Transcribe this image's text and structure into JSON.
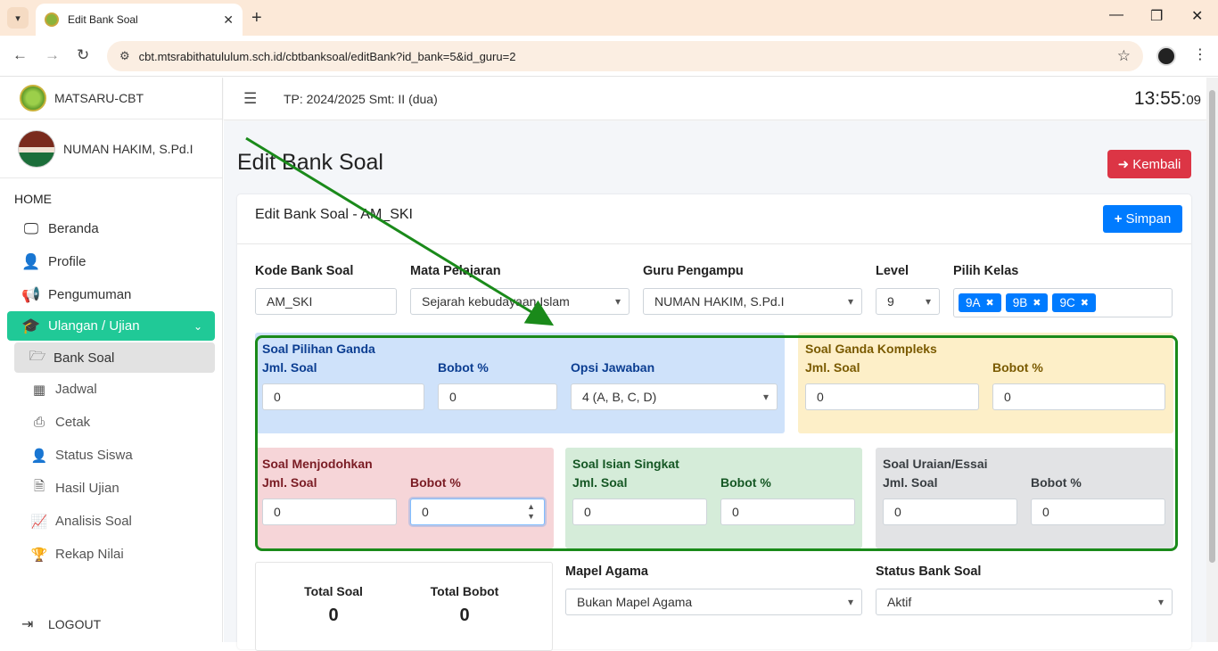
{
  "browser": {
    "tab_title": "Edit Bank Soal",
    "url": "cbt.mtsrabithatulului m.sch.id/cbtbanksoal/editBank?id_bank=5&id_guru=2"
  },
  "sidebar": {
    "brand": "MATSARU-CBT",
    "user_name": "NUMAN HAKIM, S.Pd.I",
    "header": "HOME",
    "items": [
      {
        "label": "Beranda",
        "icon": "monitor-icon"
      },
      {
        "label": "Profile",
        "icon": "user-icon"
      },
      {
        "label": "Pengumuman",
        "icon": "megaphone-icon"
      },
      {
        "label": "Ulangan / Ujian",
        "icon": "graduation-icon"
      }
    ],
    "sub_items": [
      {
        "label": "Bank Soal",
        "icon": "folder-open-icon"
      },
      {
        "label": "Jadwal",
        "icon": "calendar-icon"
      },
      {
        "label": "Cetak",
        "icon": "print-icon"
      },
      {
        "label": "Status Siswa",
        "icon": "user-clock-icon"
      },
      {
        "label": "Hasil Ujian",
        "icon": "file-icon"
      },
      {
        "label": "Analisis Soal",
        "icon": "chart-line-icon"
      },
      {
        "label": "Rekap Nilai",
        "icon": "trophy-icon"
      }
    ],
    "logout": "LOGOUT"
  },
  "topbar": {
    "tp": "TP: 2024/2025 Smt: II (dua)",
    "clock_hm": "13:55:",
    "clock_s": "09"
  },
  "page": {
    "title": "Edit Bank Soal",
    "kembali": "Kembali",
    "card_title": "Edit Bank Soal - AM_SKI",
    "simpan": "Simpan"
  },
  "form": {
    "kode_label": "Kode Bank Soal",
    "kode_value": "AM_SKI",
    "mapel_label": "Mata Pelajaran",
    "mapel_value": "Sejarah kebudayaan Islam",
    "guru_label": "Guru Pengampu",
    "guru_value": "NUMAN HAKIM, S.Pd.I",
    "level_label": "Level",
    "level_value": "9",
    "kelas_label": "Pilih Kelas",
    "kelas": [
      "9A",
      "9B",
      "9C"
    ]
  },
  "panels": {
    "pg": {
      "title": "Soal Pilihan Ganda",
      "jml_label": "Jml. Soal",
      "jml": "0",
      "bobot_label": "Bobot %",
      "bobot": "0",
      "opsi_label": "Opsi Jawaban",
      "opsi": "4 (A, B, C, D)"
    },
    "kompleks": {
      "title": "Soal Ganda Kompleks",
      "jml_label": "Jml. Soal",
      "jml": "0",
      "bobot_label": "Bobot %",
      "bobot": "0"
    },
    "jodoh": {
      "title": "Soal Menjodohkan",
      "jml_label": "Jml. Soal",
      "jml": "0",
      "bobot_label": "Bobot %",
      "bobot": "0"
    },
    "isian": {
      "title": "Soal Isian Singkat",
      "jml_label": "Jml. Soal",
      "jml": "0",
      "bobot_label": "Bobot %",
      "bobot": "0"
    },
    "essai": {
      "title": "Soal Uraian/Essai",
      "jml_label": "Jml. Soal",
      "jml": "0",
      "bobot_label": "Bobot %",
      "bobot": "0"
    }
  },
  "totals": {
    "soal_label": "Total Soal",
    "soal": "0",
    "bobot_label": "Total Bobot",
    "bobot": "0"
  },
  "agama": {
    "label": "Mapel Agama",
    "value": "Bukan Mapel Agama"
  },
  "status": {
    "label": "Status Bank Soal",
    "value": "Aktif"
  },
  "colors": {
    "accent": "#20c997",
    "primary": "#007bff",
    "danger": "#dc3545",
    "annotation": "#1a8a1a"
  }
}
